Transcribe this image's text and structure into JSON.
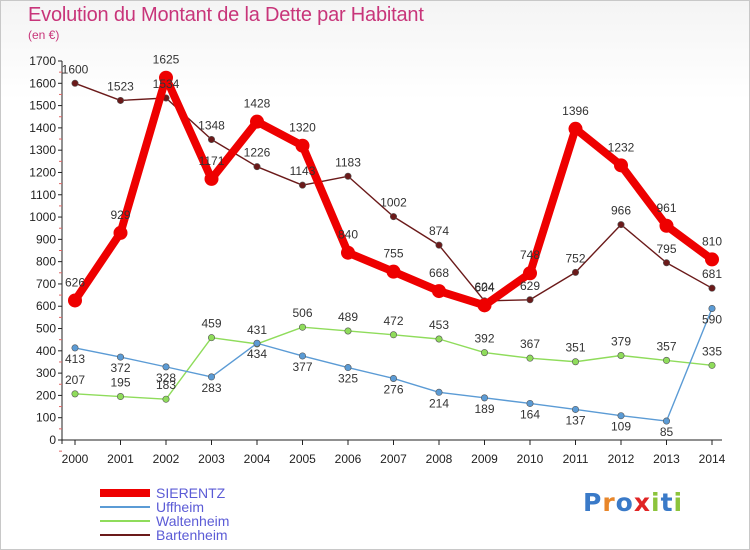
{
  "chart_data": {
    "type": "line",
    "title": "Evolution du Montant de la Dette par Habitant",
    "subtitle": "(en €)",
    "x": [
      "2000",
      "2001",
      "2002",
      "2003",
      "2004",
      "2005",
      "2006",
      "2007",
      "2008",
      "2009",
      "2010",
      "2011",
      "2012",
      "2013",
      "2014"
    ],
    "yticks": [
      0,
      100,
      200,
      300,
      400,
      500,
      600,
      700,
      800,
      900,
      1000,
      1100,
      1200,
      1300,
      1400,
      1500,
      1600,
      1700
    ],
    "ylim": [
      0,
      1700
    ],
    "grid": false,
    "legend_position": "bottom-left",
    "series": [
      {
        "name": "SIERENTZ",
        "color": "#ee0000",
        "values": [
          626,
          929,
          1625,
          1171,
          1428,
          1320,
          840,
          755,
          668,
          604,
          748,
          1396,
          1232,
          961,
          810
        ]
      },
      {
        "name": "Uffheim",
        "color": "#5b9bd5",
        "values": [
          413,
          372,
          328,
          283,
          434,
          377,
          325,
          276,
          214,
          189,
          164,
          137,
          109,
          85,
          590
        ]
      },
      {
        "name": "Waltenheim",
        "color": "#8fdc5b",
        "values": [
          207,
          195,
          183,
          459,
          431,
          506,
          489,
          472,
          453,
          392,
          367,
          351,
          379,
          357,
          335
        ]
      },
      {
        "name": "Bartenheim",
        "color": "#6b1a1a",
        "values": [
          1600,
          1523,
          1534,
          1348,
          1226,
          1143,
          1183,
          1002,
          874,
          624,
          629,
          752,
          966,
          795,
          681
        ]
      }
    ]
  },
  "logo": {
    "text": "Proxiti",
    "letters": [
      "P",
      "r",
      "o",
      "x",
      "i",
      "t",
      "i"
    ],
    "colors": [
      "#3a7ac8",
      "#e8862a",
      "#3a7ac8",
      "#e02424",
      "#8cc43c",
      "#3a7ac8",
      "#8cc43c"
    ]
  }
}
